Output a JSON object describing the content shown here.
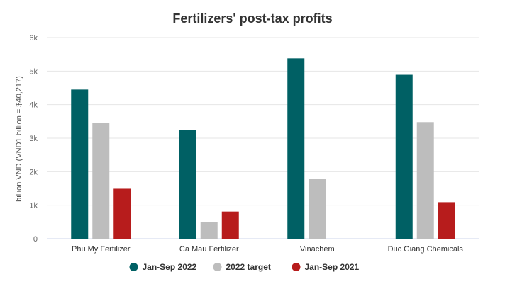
{
  "chart_data": {
    "type": "bar",
    "title": "Fertilizers' post-tax profits",
    "xlabel": "",
    "ylabel": "billion VND (VND1 billion = $40,217)",
    "ylim": [
      0,
      6000
    ],
    "yticks": [
      0,
      1000,
      2000,
      3000,
      4000,
      5000,
      6000
    ],
    "ytick_labels": [
      "0",
      "1k",
      "2k",
      "3k",
      "4k",
      "5k",
      "6k"
    ],
    "grid": true,
    "legend_position": "bottom-center",
    "categories": [
      "Phu My Fertilizer",
      "Ca Mau Fertilizer",
      "Vinachem",
      "Duc Giang Chemicals"
    ],
    "series": [
      {
        "name": "Jan-Sep 2022",
        "color": "#006064",
        "values": [
          4450,
          3250,
          5380,
          4890
        ]
      },
      {
        "name": "2022 target",
        "color": "#bdbdbd",
        "values": [
          3450,
          490,
          1780,
          3480
        ]
      },
      {
        "name": "Jan-Sep 2021",
        "color": "#b71c1c",
        "values": [
          1490,
          810,
          null,
          1090
        ]
      }
    ]
  }
}
